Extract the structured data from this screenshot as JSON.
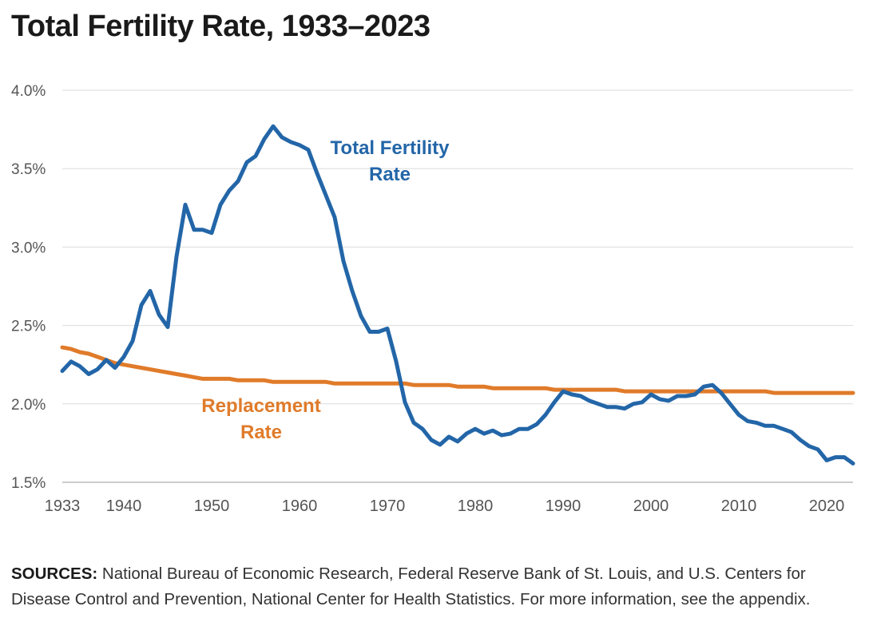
{
  "title": "Total Fertility Rate, 1933–2023",
  "sources": {
    "label": "SOURCES:",
    "text": " National Bureau of Economic Research, Federal Reserve Bank of St. Louis, and U.S. Centers for Disease Control and Prevention, National Center for Health Statistics. For more information, see the appendix."
  },
  "colors": {
    "tfr": "#2366a8",
    "replacement": "#e07b2a"
  },
  "chart_data": {
    "type": "line",
    "title": "Total Fertility Rate, 1933–2023",
    "xlabel": "",
    "ylabel": "",
    "xlim": [
      1933,
      2023
    ],
    "ylim": [
      1.5,
      4.0
    ],
    "grid": true,
    "x_ticks": [
      "1933",
      "1940",
      "1950",
      "1960",
      "1970",
      "1980",
      "1990",
      "2000",
      "2010",
      "2020"
    ],
    "y_ticks": [
      "1.5%",
      "2.0%",
      "2.5%",
      "3.0%",
      "3.5%",
      "4.0%"
    ],
    "x": [
      1933,
      1934,
      1935,
      1936,
      1937,
      1938,
      1939,
      1940,
      1941,
      1942,
      1943,
      1944,
      1945,
      1946,
      1947,
      1948,
      1949,
      1950,
      1951,
      1952,
      1953,
      1954,
      1955,
      1956,
      1957,
      1958,
      1959,
      1960,
      1961,
      1962,
      1963,
      1964,
      1965,
      1966,
      1967,
      1968,
      1969,
      1970,
      1971,
      1972,
      1973,
      1974,
      1975,
      1976,
      1977,
      1978,
      1979,
      1980,
      1981,
      1982,
      1983,
      1984,
      1985,
      1986,
      1987,
      1988,
      1989,
      1990,
      1991,
      1992,
      1993,
      1994,
      1995,
      1996,
      1997,
      1998,
      1999,
      2000,
      2001,
      2002,
      2003,
      2004,
      2005,
      2006,
      2007,
      2008,
      2009,
      2010,
      2011,
      2012,
      2013,
      2014,
      2015,
      2016,
      2017,
      2018,
      2019,
      2020,
      2021,
      2022,
      2023
    ],
    "series": [
      {
        "name": "Total Fertility Rate",
        "values": [
          2.21,
          2.27,
          2.24,
          2.19,
          2.22,
          2.28,
          2.23,
          2.3,
          2.4,
          2.63,
          2.72,
          2.57,
          2.49,
          2.94,
          3.27,
          3.11,
          3.11,
          3.09,
          3.27,
          3.36,
          3.42,
          3.54,
          3.58,
          3.69,
          3.77,
          3.7,
          3.67,
          3.65,
          3.62,
          3.47,
          3.33,
          3.19,
          2.91,
          2.72,
          2.56,
          2.46,
          2.46,
          2.48,
          2.27,
          2.01,
          1.88,
          1.84,
          1.77,
          1.74,
          1.79,
          1.76,
          1.81,
          1.84,
          1.81,
          1.83,
          1.8,
          1.81,
          1.84,
          1.84,
          1.87,
          1.93,
          2.01,
          2.08,
          2.06,
          2.05,
          2.02,
          2.0,
          1.98,
          1.98,
          1.97,
          2.0,
          2.01,
          2.06,
          2.03,
          2.02,
          2.05,
          2.05,
          2.06,
          2.11,
          2.12,
          2.07,
          2.0,
          1.93,
          1.89,
          1.88,
          1.86,
          1.86,
          1.84,
          1.82,
          1.77,
          1.73,
          1.71,
          1.64,
          1.66,
          1.66,
          1.62
        ]
      },
      {
        "name": "Replacement Rate",
        "values": [
          2.36,
          2.35,
          2.33,
          2.32,
          2.3,
          2.28,
          2.26,
          2.25,
          2.24,
          2.23,
          2.22,
          2.21,
          2.2,
          2.19,
          2.18,
          2.17,
          2.16,
          2.16,
          2.16,
          2.16,
          2.15,
          2.15,
          2.15,
          2.15,
          2.14,
          2.14,
          2.14,
          2.14,
          2.14,
          2.14,
          2.14,
          2.13,
          2.13,
          2.13,
          2.13,
          2.13,
          2.13,
          2.13,
          2.13,
          2.13,
          2.12,
          2.12,
          2.12,
          2.12,
          2.12,
          2.11,
          2.11,
          2.11,
          2.11,
          2.1,
          2.1,
          2.1,
          2.1,
          2.1,
          2.1,
          2.1,
          2.09,
          2.09,
          2.09,
          2.09,
          2.09,
          2.09,
          2.09,
          2.09,
          2.08,
          2.08,
          2.08,
          2.08,
          2.08,
          2.08,
          2.08,
          2.08,
          2.08,
          2.08,
          2.08,
          2.08,
          2.08,
          2.08,
          2.08,
          2.08,
          2.08,
          2.07,
          2.07,
          2.07,
          2.07,
          2.07,
          2.07,
          2.07,
          2.07,
          2.07,
          2.07
        ]
      }
    ],
    "annotations": [
      {
        "series": "Total Fertility Rate",
        "lines": [
          "Total Fertility",
          "Rate"
        ]
      },
      {
        "series": "Replacement Rate",
        "lines": [
          "Replacement",
          "Rate"
        ]
      }
    ]
  }
}
